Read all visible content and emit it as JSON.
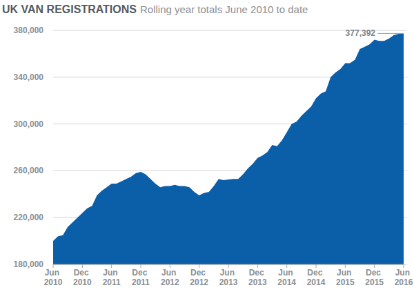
{
  "chart_data": {
    "type": "area",
    "title": "UK VAN REGISTRATIONS",
    "subtitle": "Rolling year totals June 2010 to date",
    "categories": [
      "Jun 2010",
      null,
      null,
      null,
      null,
      null,
      "Dec 2010",
      null,
      null,
      null,
      null,
      null,
      "Jun 2011",
      null,
      null,
      null,
      null,
      null,
      "Dec 2011",
      null,
      null,
      null,
      null,
      null,
      "Jun 2012",
      null,
      null,
      null,
      null,
      null,
      "Dec 2012",
      null,
      null,
      null,
      null,
      null,
      "Jun 2013",
      null,
      null,
      null,
      null,
      null,
      "Dec 2013",
      null,
      null,
      null,
      null,
      null,
      "Jun 2014",
      null,
      null,
      null,
      null,
      null,
      "Dec 2014",
      null,
      null,
      null,
      null,
      null,
      "Jun 2015",
      null,
      null,
      null,
      null,
      null,
      "Dec 2015",
      null,
      null,
      null,
      null,
      null,
      "Jun 2016"
    ],
    "values": [
      200000,
      204000,
      205000,
      212000,
      216000,
      220000,
      224000,
      228000,
      230000,
      239000,
      243000,
      246000,
      249000,
      249000,
      251000,
      253000,
      255000,
      258000,
      259000,
      257000,
      253000,
      249000,
      246000,
      247000,
      247000,
      248000,
      247000,
      247000,
      246000,
      242000,
      239000,
      241000,
      242000,
      247000,
      253000,
      252000,
      252500,
      253000,
      253000,
      257000,
      262000,
      266000,
      271000,
      273000,
      276000,
      282000,
      281000,
      286000,
      293000,
      300000,
      302000,
      307000,
      311000,
      315000,
      322000,
      326000,
      328000,
      340000,
      344000,
      347000,
      352000,
      352000,
      355000,
      364000,
      366000,
      368000,
      372000,
      371000,
      371000,
      373000,
      376000,
      377000,
      377392
    ],
    "value_labels": [
      null,
      null,
      null,
      null,
      null,
      null,
      null,
      null,
      null,
      null,
      null,
      null,
      null,
      null,
      null,
      null,
      null,
      null,
      null,
      null,
      null,
      null,
      null,
      null,
      null,
      null,
      null,
      null,
      null,
      null,
      null,
      null,
      null,
      null,
      null,
      null,
      null,
      null,
      null,
      null,
      null,
      null,
      null,
      null,
      null,
      null,
      null,
      null,
      null,
      null,
      null,
      null,
      null,
      null,
      null,
      null,
      null,
      null,
      null,
      null,
      null,
      null,
      null,
      null,
      null,
      null,
      null,
      null,
      null,
      null,
      null,
      null,
      "377,392"
    ],
    "color": "#0b5ea8",
    "ylim": [
      180000,
      380000
    ],
    "yticks": [
      {
        "value": 180000,
        "label": "180,000"
      },
      {
        "value": 220000,
        "label": "220,000"
      },
      {
        "value": 260000,
        "label": "260,000"
      },
      {
        "value": 300000,
        "label": "300,000"
      },
      {
        "value": 340000,
        "label": "340,000"
      },
      {
        "value": 380000,
        "label": "380,000"
      }
    ],
    "grid": true
  }
}
